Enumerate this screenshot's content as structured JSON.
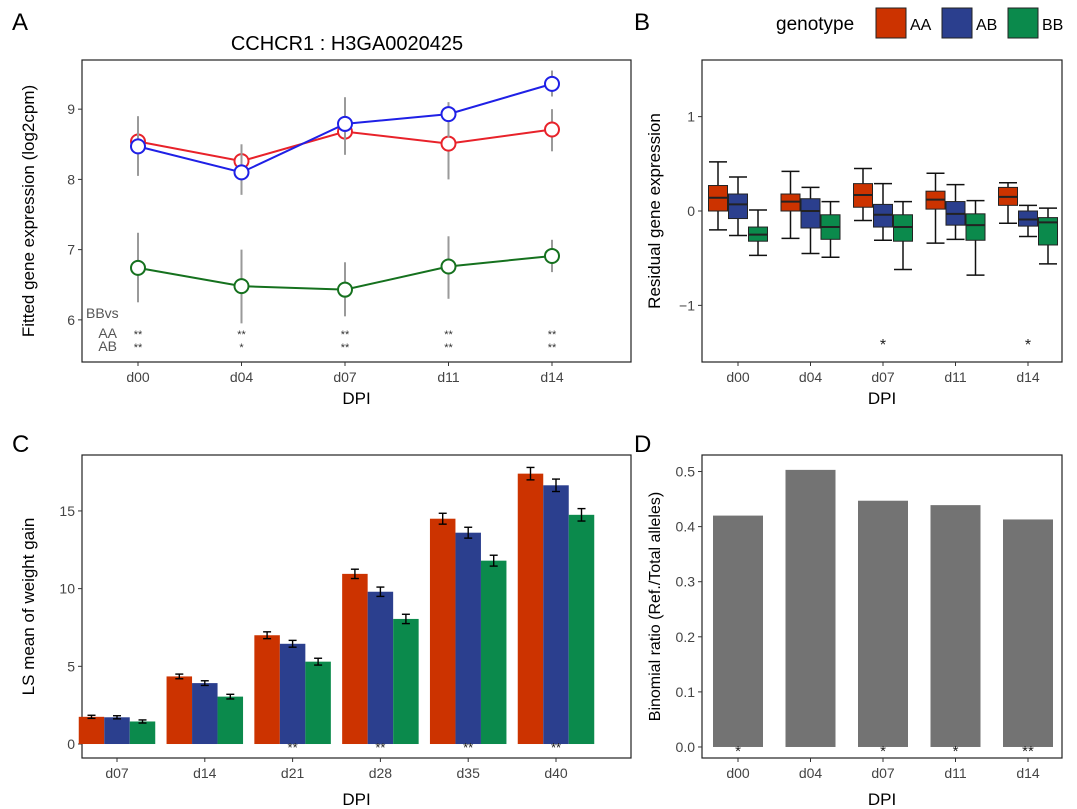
{
  "legend": {
    "title": "genotype",
    "items": [
      {
        "label": "AA",
        "color": "#CC3300"
      },
      {
        "label": "AB",
        "color": "#2B3F8E"
      },
      {
        "label": "BB",
        "color": "#0B8A4C"
      }
    ]
  },
  "panels": {
    "A": {
      "letter": "A",
      "title": "CCHCR1 : H3GA0020425"
    },
    "B": {
      "letter": "B"
    },
    "C": {
      "letter": "C"
    },
    "D": {
      "letter": "D"
    }
  },
  "chart_data": [
    {
      "panel": "A",
      "type": "line",
      "title": "CCHCR1 : H3GA0020425",
      "xlabel": "DPI",
      "ylabel": "Fitted gene expression (log2cpm)",
      "categories": [
        "d00",
        "d04",
        "d07",
        "d11",
        "d14"
      ],
      "ylim": [
        5.4,
        9.7
      ],
      "yticks": [
        6,
        7,
        8,
        9
      ],
      "series": [
        {
          "name": "AA",
          "color": "#E8222A",
          "values": [
            8.54,
            8.26,
            8.68,
            8.51,
            8.71
          ],
          "err_low": [
            8.2,
            7.95,
            8.4,
            8.0,
            8.4
          ],
          "err_high": [
            8.9,
            8.5,
            8.95,
            9.02,
            9.0
          ]
        },
        {
          "name": "AB",
          "color": "#1F20E6",
          "values": [
            8.47,
            8.1,
            8.79,
            8.93,
            9.36
          ],
          "err_low": [
            8.05,
            7.78,
            8.35,
            8.6,
            9.18
          ],
          "err_high": [
            8.85,
            8.38,
            9.17,
            9.1,
            9.55
          ]
        },
        {
          "name": "BB",
          "color": "#15711E",
          "values": [
            6.74,
            6.48,
            6.43,
            6.76,
            6.91
          ],
          "err_low": [
            6.25,
            5.95,
            6.05,
            6.3,
            6.68
          ],
          "err_high": [
            7.24,
            7.0,
            6.82,
            7.19,
            7.14
          ]
        }
      ],
      "annotations": {
        "header": "BBvs",
        "rows": [
          {
            "label": "AA",
            "marks": [
              "**",
              "**",
              "**",
              "**",
              "**"
            ]
          },
          {
            "label": "AB",
            "marks": [
              "**",
              "*",
              "**",
              "**",
              "**"
            ]
          }
        ]
      },
      "grid": false
    },
    {
      "panel": "B",
      "type": "box",
      "xlabel": "DPI",
      "ylabel": "Residual gene expression",
      "categories": [
        "d00",
        "d04",
        "d07",
        "d11",
        "d14"
      ],
      "ylim": [
        -1.6,
        1.6
      ],
      "yticks": [
        -1,
        0,
        1
      ],
      "groups": [
        "AA",
        "AB",
        "BB"
      ],
      "boxes": [
        [
          {
            "min": -0.2,
            "q1": 0.0,
            "median": 0.14,
            "q3": 0.27,
            "max": 0.52
          },
          {
            "min": -0.26,
            "q1": -0.08,
            "median": 0.07,
            "q3": 0.18,
            "max": 0.36
          },
          {
            "min": -0.47,
            "q1": -0.32,
            "median": -0.25,
            "q3": -0.17,
            "max": 0.01
          }
        ],
        [
          {
            "min": -0.29,
            "q1": 0.0,
            "median": 0.1,
            "q3": 0.18,
            "max": 0.42
          },
          {
            "min": -0.45,
            "q1": -0.18,
            "median": 0.0,
            "q3": 0.13,
            "max": 0.25
          },
          {
            "min": -0.49,
            "q1": -0.3,
            "median": -0.17,
            "q3": -0.04,
            "max": 0.1
          }
        ],
        [
          {
            "min": -0.1,
            "q1": 0.04,
            "median": 0.17,
            "q3": 0.29,
            "max": 0.45
          },
          {
            "min": -0.31,
            "q1": -0.17,
            "median": -0.04,
            "q3": 0.07,
            "max": 0.29
          },
          {
            "min": -0.62,
            "q1": -0.32,
            "median": -0.17,
            "q3": -0.04,
            "max": 0.1
          }
        ],
        [
          {
            "min": -0.34,
            "q1": 0.02,
            "median": 0.12,
            "q3": 0.21,
            "max": 0.4
          },
          {
            "min": -0.3,
            "q1": -0.15,
            "median": -0.03,
            "q3": 0.1,
            "max": 0.28
          },
          {
            "min": -0.68,
            "q1": -0.31,
            "median": -0.15,
            "q3": -0.03,
            "max": 0.11
          }
        ],
        [
          {
            "min": -0.13,
            "q1": 0.06,
            "median": 0.15,
            "q3": 0.25,
            "max": 0.3
          },
          {
            "min": -0.27,
            "q1": -0.16,
            "median": -0.09,
            "q3": 0.0,
            "max": 0.06
          },
          {
            "min": -0.56,
            "q1": -0.36,
            "median": -0.12,
            "q3": -0.07,
            "max": 0.03
          }
        ]
      ],
      "significance": [
        "",
        "",
        "*",
        "",
        "*"
      ],
      "grid": false
    },
    {
      "panel": "C",
      "type": "bar",
      "xlabel": "DPI",
      "ylabel": "LS mean of weight gain",
      "categories": [
        "d07",
        "d14",
        "d21",
        "d28",
        "d35",
        "d40"
      ],
      "ylim": [
        -0.9,
        18.6
      ],
      "yticks": [
        0,
        5,
        10,
        15
      ],
      "series": [
        {
          "name": "AA",
          "color": "#CC3300",
          "values": [
            1.75,
            4.35,
            7.0,
            10.95,
            14.5,
            17.4
          ],
          "err": [
            0.1,
            0.15,
            0.22,
            0.3,
            0.35,
            0.4
          ]
        },
        {
          "name": "AB",
          "color": "#2B3F8E",
          "values": [
            1.72,
            3.92,
            6.45,
            9.8,
            13.6,
            16.65
          ],
          "err": [
            0.1,
            0.15,
            0.22,
            0.3,
            0.35,
            0.4
          ]
        },
        {
          "name": "BB",
          "color": "#0B8A4C",
          "values": [
            1.45,
            3.05,
            5.3,
            8.05,
            11.8,
            14.75
          ],
          "err": [
            0.1,
            0.15,
            0.22,
            0.3,
            0.35,
            0.4
          ]
        }
      ],
      "significance": [
        "",
        "",
        "**",
        "**",
        "**",
        "**"
      ],
      "grid": false
    },
    {
      "panel": "D",
      "type": "bar",
      "xlabel": "DPI",
      "ylabel": "Binomial ratio (Ref./Total alleles)",
      "categories": [
        "d00",
        "d04",
        "d07",
        "d11",
        "d14"
      ],
      "ylim": [
        -0.02,
        0.53
      ],
      "yticks": [
        0.0,
        0.1,
        0.2,
        0.3,
        0.4,
        0.5
      ],
      "series": [
        {
          "name": "",
          "color": "#737373",
          "values": [
            0.42,
            0.503,
            0.447,
            0.439,
            0.413
          ]
        }
      ],
      "significance": [
        "*",
        "",
        "*",
        "*",
        "**"
      ],
      "grid": false
    }
  ]
}
